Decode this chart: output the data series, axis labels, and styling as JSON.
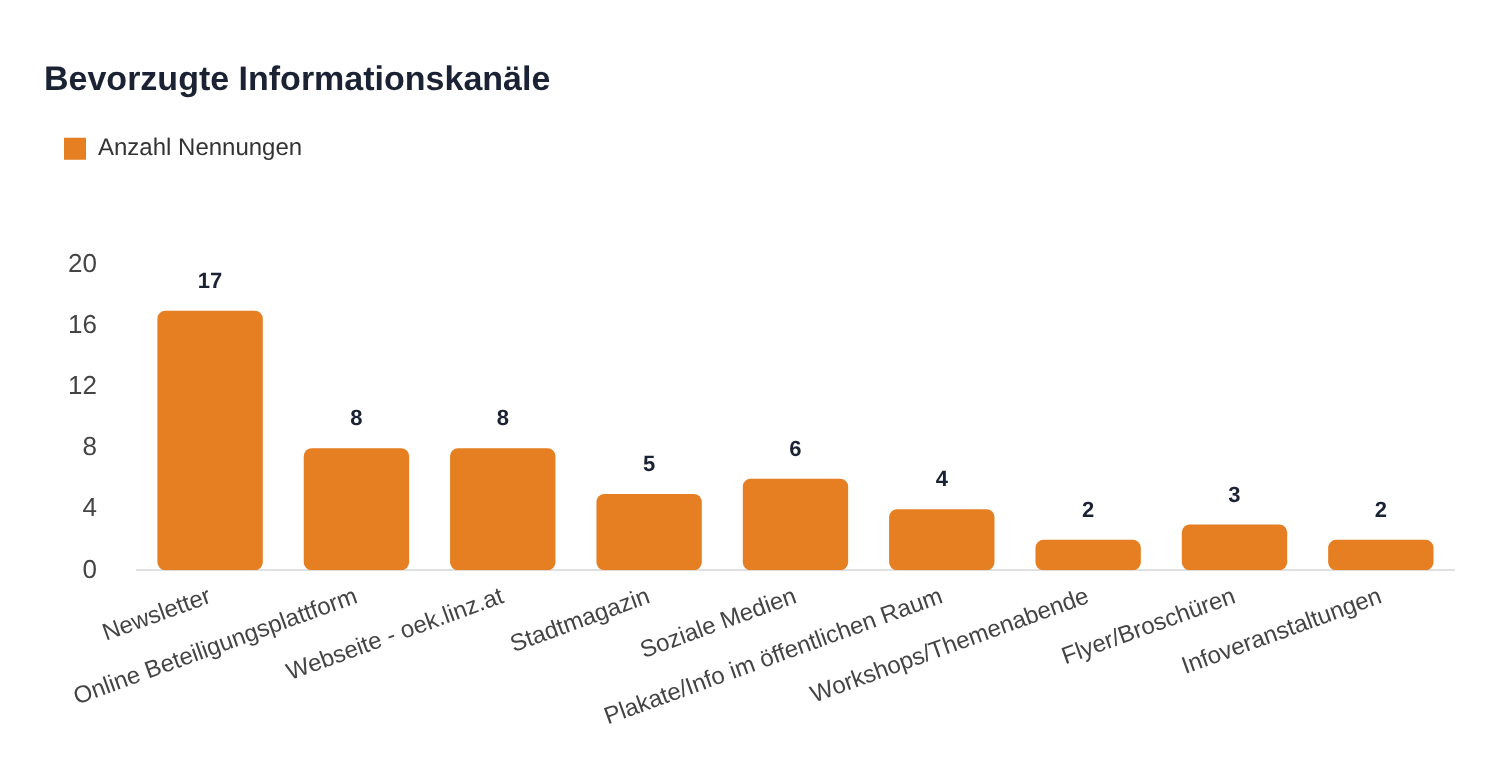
{
  "chart_data": {
    "type": "bar",
    "title": "Bevorzugte Informationskanäle",
    "categories": [
      "Newsletter",
      "Online Beteiligungsplattform",
      "Webseite - oek.linz.at",
      "Stadtmagazin",
      "Soziale Medien",
      "Plakate/Info im öffentlichen Raum",
      "Workshops/Themenabende",
      "Flyer/Broschüren",
      "Infoveranstaltungen"
    ],
    "series": [
      {
        "name": "Anzahl Nennungen",
        "color": "#e67e22",
        "values": [
          17,
          8,
          8,
          5,
          6,
          4,
          2,
          3,
          2
        ]
      }
    ],
    "ylim": [
      0,
      20
    ],
    "yticks": [
      0,
      4,
      8,
      12,
      16,
      20
    ],
    "grid": false,
    "legend": "top left",
    "data_labels": true
  }
}
